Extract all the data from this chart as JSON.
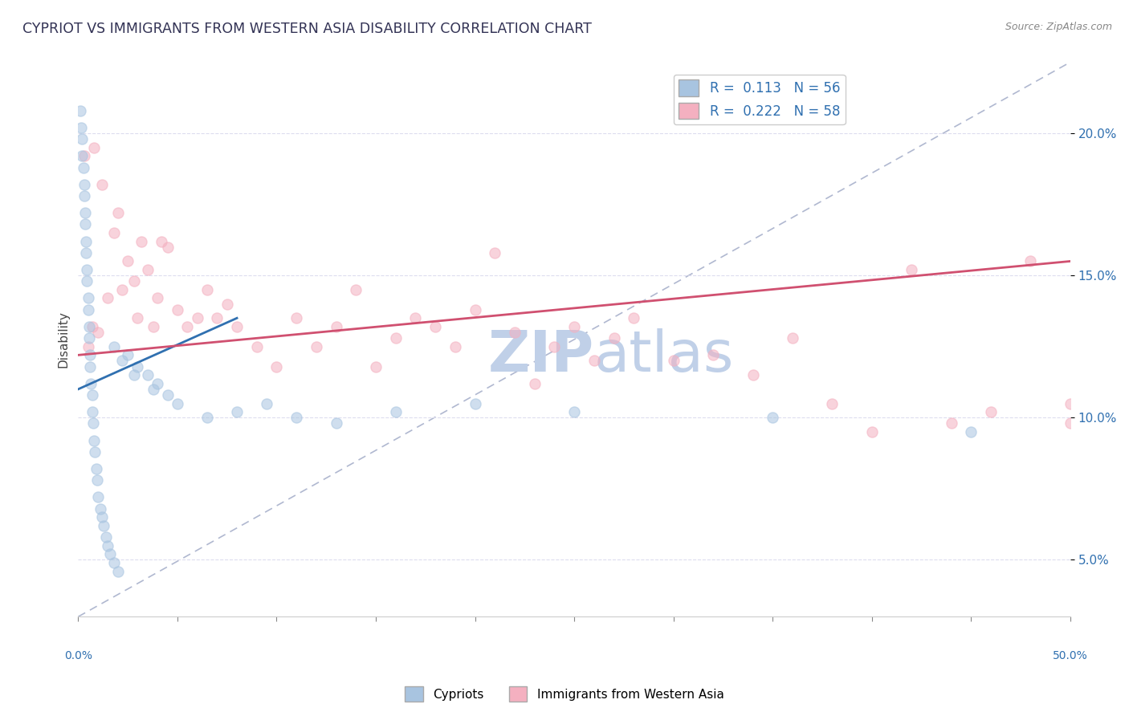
{
  "title": "CYPRIOT VS IMMIGRANTS FROM WESTERN ASIA DISABILITY CORRELATION CHART",
  "source_text": "Source: ZipAtlas.com",
  "ylabel": "Disability",
  "ytick_values": [
    5.0,
    10.0,
    15.0,
    20.0
  ],
  "xlim": [
    0.0,
    50.0
  ],
  "ylim": [
    3.0,
    22.5
  ],
  "legend_entries": [
    {
      "label": "Cypriots",
      "color": "#a8c4e0",
      "border_color": "#7aafd4",
      "R": "0.113",
      "N": "56"
    },
    {
      "label": "Immigrants from Western Asia",
      "color": "#f4b0c0",
      "border_color": "#e890a8",
      "R": "0.222",
      "N": "58"
    }
  ],
  "blue_scatter_x": [
    0.1,
    0.15,
    0.2,
    0.2,
    0.25,
    0.3,
    0.3,
    0.35,
    0.35,
    0.4,
    0.4,
    0.45,
    0.45,
    0.5,
    0.5,
    0.55,
    0.55,
    0.6,
    0.6,
    0.65,
    0.7,
    0.7,
    0.75,
    0.8,
    0.85,
    0.9,
    0.95,
    1.0,
    1.1,
    1.2,
    1.3,
    1.4,
    1.5,
    1.6,
    1.8,
    2.0,
    2.5,
    3.0,
    3.5,
    4.0,
    4.5,
    1.8,
    2.2,
    2.8,
    3.8,
    5.0,
    6.5,
    8.0,
    9.5,
    11.0,
    13.0,
    16.0,
    20.0,
    25.0,
    35.0,
    45.0
  ],
  "blue_scatter_y": [
    20.8,
    20.2,
    19.8,
    19.2,
    18.8,
    18.2,
    17.8,
    17.2,
    16.8,
    16.2,
    15.8,
    15.2,
    14.8,
    14.2,
    13.8,
    13.2,
    12.8,
    12.2,
    11.8,
    11.2,
    10.8,
    10.2,
    9.8,
    9.2,
    8.8,
    8.2,
    7.8,
    7.2,
    6.8,
    6.5,
    6.2,
    5.8,
    5.5,
    5.2,
    4.9,
    4.6,
    12.2,
    11.8,
    11.5,
    11.2,
    10.8,
    12.5,
    12.0,
    11.5,
    11.0,
    10.5,
    10.0,
    10.2,
    10.5,
    10.0,
    9.8,
    10.2,
    10.5,
    10.2,
    10.0,
    9.5
  ],
  "pink_scatter_x": [
    0.3,
    0.5,
    0.7,
    0.8,
    1.0,
    1.2,
    1.5,
    1.8,
    2.0,
    2.2,
    2.5,
    2.8,
    3.0,
    3.2,
    3.5,
    3.8,
    4.0,
    4.2,
    4.5,
    5.0,
    5.5,
    6.0,
    6.5,
    7.0,
    7.5,
    8.0,
    9.0,
    10.0,
    11.0,
    12.0,
    13.0,
    14.0,
    15.0,
    16.0,
    17.0,
    18.0,
    19.0,
    20.0,
    21.0,
    22.0,
    23.0,
    24.0,
    25.0,
    26.0,
    27.0,
    28.0,
    30.0,
    32.0,
    34.0,
    36.0,
    38.0,
    40.0,
    42.0,
    44.0,
    46.0,
    48.0,
    50.0,
    50.0
  ],
  "pink_scatter_y": [
    19.2,
    12.5,
    13.2,
    19.5,
    13.0,
    18.2,
    14.2,
    16.5,
    17.2,
    14.5,
    15.5,
    14.8,
    13.5,
    16.2,
    15.2,
    13.2,
    14.2,
    16.2,
    16.0,
    13.8,
    13.2,
    13.5,
    14.5,
    13.5,
    14.0,
    13.2,
    12.5,
    11.8,
    13.5,
    12.5,
    13.2,
    14.5,
    11.8,
    12.8,
    13.5,
    13.2,
    12.5,
    13.8,
    15.8,
    13.0,
    11.2,
    12.5,
    13.2,
    12.0,
    12.8,
    13.5,
    12.0,
    12.2,
    11.5,
    12.8,
    10.5,
    9.5,
    15.2,
    9.8,
    10.2,
    15.5,
    10.5,
    9.8
  ],
  "blue_line": {
    "x0": 0.0,
    "y0": 11.0,
    "x1": 8.0,
    "y1": 13.5,
    "color": "#3070b0",
    "linewidth": 2.0
  },
  "pink_line": {
    "x0": 0.0,
    "y0": 12.2,
    "x1": 50.0,
    "y1": 15.5,
    "color": "#d05070",
    "linewidth": 2.0
  },
  "diag_line": {
    "x0": 0.0,
    "y0": 3.0,
    "x1": 50.0,
    "y1": 22.5,
    "color": "#b0b8d0",
    "linewidth": 1.2,
    "linestyle": "--"
  },
  "grid_color": "#ddddee",
  "background_color": "#ffffff",
  "scatter_alpha": 0.55,
  "scatter_size": 90,
  "watermark_left": "ZIP",
  "watermark_right": "atlas",
  "watermark_color": "#c0d0e8",
  "watermark_fontsize": 52
}
